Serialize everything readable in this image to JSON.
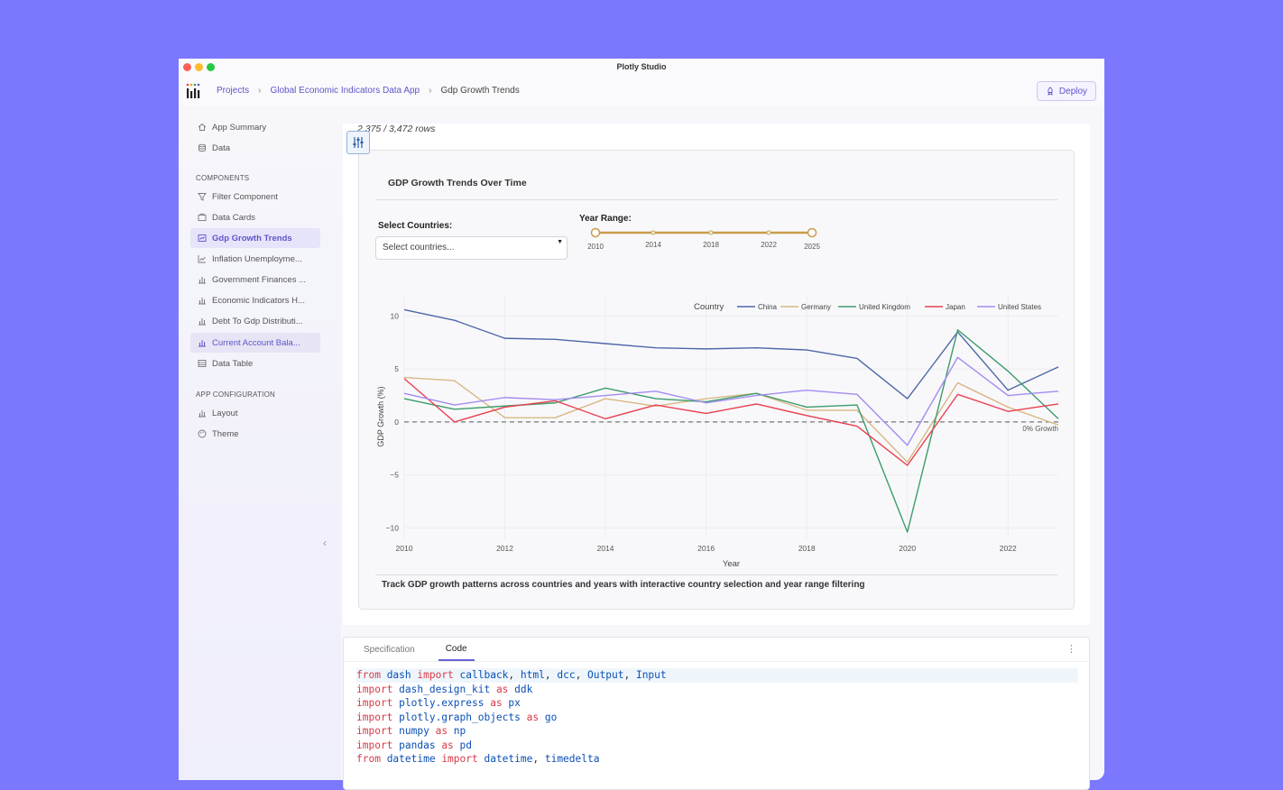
{
  "window": {
    "title": "Plotly Studio"
  },
  "breadcrumb": {
    "projects": "Projects",
    "app": "Global Economic Indicators Data App",
    "page": "Gdp Growth Trends"
  },
  "deploy": {
    "label": "Deploy"
  },
  "sidebar": {
    "top": [
      {
        "label": "App Summary"
      },
      {
        "label": "Data"
      }
    ],
    "components_heading": "COMPONENTS",
    "components": [
      {
        "label": "Filter Component"
      },
      {
        "label": "Data Cards"
      },
      {
        "label": "Gdp Growth Trends"
      },
      {
        "label": "Inflation Unemployme..."
      },
      {
        "label": "Government Finances ..."
      },
      {
        "label": "Economic Indicators H..."
      },
      {
        "label": "Debt To Gdp Distributi..."
      },
      {
        "label": "Current Account Bala..."
      },
      {
        "label": "Data Table"
      }
    ],
    "config_heading": "APP CONFIGURATION",
    "config": [
      {
        "label": "Layout"
      },
      {
        "label": "Theme"
      }
    ]
  },
  "main": {
    "row_count": "2,375 / 3,472 rows",
    "card_title": "GDP Growth Trends Over Time",
    "countries_label": "Select Countries:",
    "countries_placeholder": "Select countries...",
    "year_label": "Year Range:",
    "slider_marks": [
      "2010",
      "2014",
      "2018",
      "2022",
      "2025"
    ],
    "slider_range": [
      2010,
      2025
    ],
    "description": "Track GDP growth patterns across countries and years with interactive country selection and year range filtering"
  },
  "chart_data": {
    "type": "line",
    "title": "",
    "xlabel": "Year",
    "ylabel": "GDP Growth (%)",
    "legend_title": "Country",
    "legend_position": "top-right",
    "xlim": [
      2010,
      2023
    ],
    "ylim": [
      -11,
      12
    ],
    "x_ticks": [
      2010,
      2012,
      2014,
      2016,
      2018,
      2020,
      2022
    ],
    "y_ticks": [
      -10,
      -5,
      0,
      5,
      10
    ],
    "reference_line": {
      "y": 0,
      "label": "0% Growth"
    },
    "x": [
      2010,
      2011,
      2012,
      2013,
      2014,
      2015,
      2016,
      2017,
      2018,
      2019,
      2020,
      2021,
      2022,
      2023
    ],
    "series": [
      {
        "name": "China",
        "color": "#4e67a8",
        "values": [
          10.6,
          9.6,
          7.9,
          7.8,
          7.4,
          7.0,
          6.9,
          7.0,
          6.8,
          6.0,
          2.2,
          8.5,
          3.0,
          5.2
        ]
      },
      {
        "name": "Germany",
        "color": "#d9b784",
        "values": [
          4.2,
          3.9,
          0.4,
          0.4,
          2.2,
          1.5,
          2.2,
          2.7,
          1.1,
          1.1,
          -3.8,
          3.7,
          1.4,
          -0.3
        ]
      },
      {
        "name": "United Kingdom",
        "color": "#3c9c6b",
        "values": [
          2.2,
          1.2,
          1.5,
          1.8,
          3.2,
          2.2,
          1.9,
          2.7,
          1.4,
          1.6,
          -10.4,
          8.7,
          4.8,
          0.3
        ]
      },
      {
        "name": "Japan",
        "color": "#e8404f",
        "values": [
          4.1,
          0.0,
          1.4,
          2.0,
          0.3,
          1.6,
          0.8,
          1.7,
          0.6,
          -0.4,
          -4.1,
          2.6,
          1.0,
          1.7
        ]
      },
      {
        "name": "United States",
        "color": "#a58bf0",
        "values": [
          2.7,
          1.6,
          2.3,
          2.1,
          2.5,
          2.9,
          1.8,
          2.5,
          3.0,
          2.6,
          -2.2,
          6.1,
          2.5,
          2.9
        ]
      }
    ]
  },
  "code": {
    "tabs": [
      "Specification",
      "Code"
    ],
    "active_tab": "Code",
    "lines": [
      [
        [
          "kw",
          "from "
        ],
        [
          "id",
          "dash"
        ],
        [
          "kw",
          " import "
        ],
        [
          "id",
          "callback"
        ],
        [
          "pl",
          ", "
        ],
        [
          "id",
          "html"
        ],
        [
          "pl",
          ", "
        ],
        [
          "id",
          "dcc"
        ],
        [
          "pl",
          ", "
        ],
        [
          "id",
          "Output"
        ],
        [
          "pl",
          ", "
        ],
        [
          "id",
          "Input"
        ]
      ],
      [
        [
          "kw",
          "import "
        ],
        [
          "id",
          "dash_design_kit"
        ],
        [
          "kw",
          " as "
        ],
        [
          "id",
          "ddk"
        ]
      ],
      [
        [
          "kw",
          "import "
        ],
        [
          "id",
          "plotly.express"
        ],
        [
          "kw",
          " as "
        ],
        [
          "id",
          "px"
        ]
      ],
      [
        [
          "kw",
          "import "
        ],
        [
          "id",
          "plotly.graph_objects"
        ],
        [
          "kw",
          " as "
        ],
        [
          "id",
          "go"
        ]
      ],
      [
        [
          "kw",
          "import "
        ],
        [
          "id",
          "numpy"
        ],
        [
          "kw",
          " as "
        ],
        [
          "id",
          "np"
        ]
      ],
      [
        [
          "kw",
          "import "
        ],
        [
          "id",
          "pandas"
        ],
        [
          "kw",
          " as "
        ],
        [
          "id",
          "pd"
        ]
      ],
      [
        [
          "kw",
          "from "
        ],
        [
          "id",
          "datetime"
        ],
        [
          "kw",
          " import "
        ],
        [
          "id",
          "datetime"
        ],
        [
          "pl",
          ", "
        ],
        [
          "id",
          "timedelta"
        ]
      ]
    ]
  }
}
